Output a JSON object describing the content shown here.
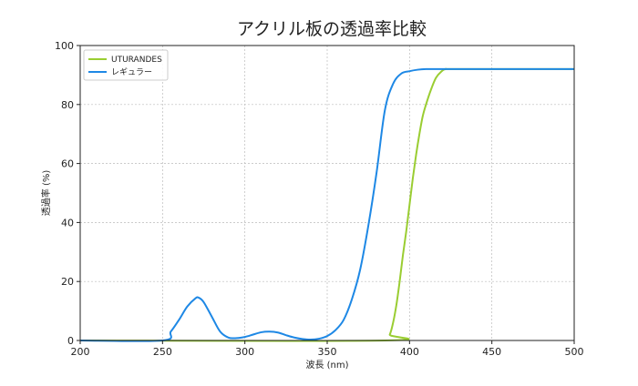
{
  "chart_data": {
    "type": "line",
    "title": "アクリル板の透過率比較",
    "xlabel": "波長 (nm)",
    "ylabel": "透過率 (%)",
    "xlim": [
      200,
      500
    ],
    "ylim": [
      0,
      100
    ],
    "xticks": [
      200,
      250,
      300,
      350,
      400,
      450,
      500
    ],
    "yticks": [
      0,
      20,
      40,
      60,
      80,
      100
    ],
    "grid": true,
    "legend": "top-left",
    "series": [
      {
        "name": "UTURANDES",
        "color": "#9acd32",
        "x": [
          200,
          385,
          388,
          390,
          392,
          394,
          396,
          398,
          400,
          402,
          404,
          406,
          408,
          410,
          413,
          416,
          419,
          422,
          430,
          500
        ],
        "y": [
          0,
          0,
          2,
          6,
          12,
          20,
          29,
          37,
          46,
          55,
          63,
          70,
          76,
          80,
          85,
          89,
          91,
          92,
          92,
          92
        ]
      },
      {
        "name": "レギュラー",
        "color": "#1e88e5",
        "x": [
          200,
          250,
          255,
          260,
          265,
          270,
          272,
          275,
          280,
          285,
          290,
          295,
          300,
          305,
          310,
          315,
          320,
          325,
          330,
          335,
          340,
          345,
          350,
          355,
          360,
          365,
          370,
          375,
          380,
          385,
          390,
          395,
          400,
          405,
          410,
          420,
          500
        ],
        "y": [
          0,
          0,
          3,
          7,
          11.5,
          14.3,
          14.5,
          13,
          8,
          3,
          1,
          0.8,
          1.2,
          2,
          2.8,
          3,
          2.7,
          1.8,
          1,
          0.5,
          0.3,
          0.6,
          1.5,
          3.5,
          7,
          14,
          24,
          39,
          57,
          78,
          87,
          90.5,
          91.3,
          91.8,
          92,
          92,
          92
        ]
      }
    ]
  }
}
